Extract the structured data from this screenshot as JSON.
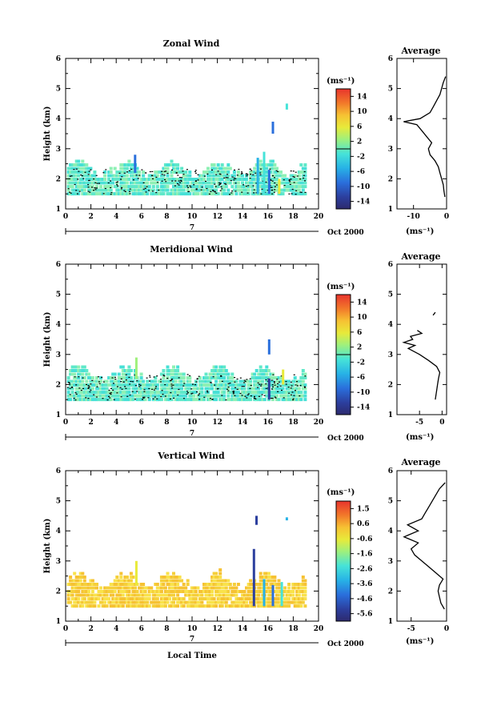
{
  "x_label": "Local Time",
  "date_label": "Oct 2000",
  "day_label": "7",
  "ylabel": "Height (km)",
  "avg_title": "Average",
  "units": "(ms⁻¹)",
  "chart_data": [
    {
      "type": "heatmap",
      "title": "Zonal Wind",
      "xlim": [
        0,
        20
      ],
      "ylim": [
        1,
        6
      ],
      "x_ticks": [
        "0",
        "2",
        "4",
        "6",
        "8",
        "10",
        "12",
        "14",
        "16",
        "18",
        "20"
      ],
      "y_ticks": [
        "1",
        "2",
        "3",
        "4",
        "5",
        "6"
      ],
      "colorbar": {
        "range": [
          -16,
          16
        ],
        "ticks": [
          "14",
          "10",
          "6",
          "2",
          "-2",
          "-6",
          "-10",
          "-14"
        ]
      },
      "avg_xlim": [
        -15,
        0
      ],
      "avg_xticks": [
        "-10",
        "0"
      ],
      "avg_profile": {
        "height": [
          1.4,
          1.6,
          1.8,
          2.0,
          2.2,
          2.4,
          2.6,
          2.8,
          3.0,
          3.2,
          3.4,
          3.6,
          3.8,
          3.9,
          4.0,
          4.2,
          4.4,
          4.6,
          4.8,
          5.0,
          5.2,
          5.4
        ],
        "value": [
          -0.5,
          -0.8,
          -1.0,
          -1.5,
          -2.0,
          -2.5,
          -3.5,
          -5.0,
          -5.5,
          -4.5,
          -6.0,
          -7.5,
          -9.0,
          -13.0,
          -8.0,
          -5.0,
          -4.0,
          -3.0,
          -2.0,
          -1.5,
          -1.0,
          -0.3
        ]
      }
    },
    {
      "type": "heatmap",
      "title": "Meridional Wind",
      "xlim": [
        0,
        20
      ],
      "ylim": [
        1,
        6
      ],
      "x_ticks": [
        "0",
        "2",
        "4",
        "6",
        "8",
        "10",
        "12",
        "14",
        "16",
        "18",
        "20"
      ],
      "y_ticks": [
        "1",
        "2",
        "3",
        "4",
        "5",
        "6"
      ],
      "colorbar": {
        "range": [
          -16,
          16
        ],
        "ticks": [
          "14",
          "10",
          "6",
          "2",
          "-2",
          "-6",
          "-10",
          "-14"
        ]
      },
      "avg_xlim": [
        -10,
        1
      ],
      "avg_xticks": [
        "-5",
        "0"
      ],
      "avg_profile": {
        "height": [
          1.5,
          1.8,
          2.0,
          2.2,
          2.4,
          2.6,
          2.8,
          3.0,
          3.2,
          3.3,
          3.4,
          3.5,
          3.6,
          3.7,
          3.8
        ],
        "value": [
          -1.5,
          -1.2,
          -1.0,
          -0.8,
          -0.5,
          -1.2,
          -3.0,
          -5.0,
          -7.5,
          -6.0,
          -8.5,
          -6.5,
          -7.0,
          -4.5,
          -5.5
        ]
      }
    },
    {
      "type": "heatmap",
      "title": "Vertical Wind",
      "xlim": [
        0,
        20
      ],
      "ylim": [
        1,
        6
      ],
      "x_ticks": [
        "0",
        "2",
        "4",
        "6",
        "8",
        "10",
        "12",
        "14",
        "16",
        "18",
        "20"
      ],
      "y_ticks": [
        "1",
        "2",
        "3",
        "4",
        "5",
        "6"
      ],
      "colorbar": {
        "range": [
          -6,
          2
        ],
        "ticks": [
          "1.5",
          "0.6",
          "-0.6",
          "-1.6",
          "-2.6",
          "-3.6",
          "-4.6",
          "-5.6"
        ]
      },
      "avg_xlim": [
        -7,
        0
      ],
      "avg_xticks": [
        "-5",
        "0"
      ],
      "avg_profile": {
        "height": [
          1.4,
          1.6,
          1.8,
          2.0,
          2.2,
          2.4,
          2.6,
          2.8,
          3.0,
          3.2,
          3.4,
          3.6,
          3.8,
          4.0,
          4.2,
          4.4,
          4.6,
          4.8,
          5.0,
          5.2,
          5.4,
          5.6
        ],
        "value": [
          -0.3,
          -0.8,
          -1.0,
          -1.2,
          -1.0,
          -0.5,
          -1.5,
          -2.5,
          -3.5,
          -4.5,
          -5.0,
          -4.0,
          -6.0,
          -4.0,
          -5.5,
          -3.5,
          -3.0,
          -2.5,
          -2.0,
          -1.5,
          -1.0,
          -0.2
        ]
      }
    }
  ]
}
